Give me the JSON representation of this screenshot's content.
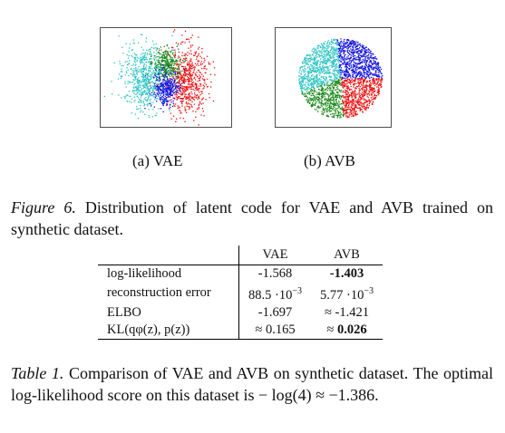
{
  "subfigures": [
    {
      "caption": "(a) VAE"
    },
    {
      "caption": "(b) AVB"
    }
  ],
  "figure_caption": {
    "label": "Figure 6.",
    "text": "Distribution of latent code for VAE and AVB trained on synthetic dataset."
  },
  "table": {
    "headers": [
      "",
      "VAE",
      "AVB"
    ],
    "rows": [
      {
        "metric": "log-likelihood",
        "vae": "-1.568",
        "avb": "-1.403",
        "avb_bold": true
      },
      {
        "metric": "reconstruction error",
        "vae": "88.5 ·10",
        "vae_exp": "−3",
        "avb": "5.77 ·10",
        "avb_exp": "−3"
      },
      {
        "metric": "ELBO",
        "vae": "-1.697",
        "avb": "≈ -1.421"
      },
      {
        "metric": "KL(qφ(z), p(z))",
        "vae": "≈ 0.165",
        "avb_prefix": "≈ ",
        "avb": "0.026",
        "avb_bold": true
      }
    ]
  },
  "table_caption": {
    "label": "Table 1.",
    "text": "Comparison of VAE and AVB on synthetic dataset. The optimal log-likelihood score on this dataset is − log(4) ≈ −1.386."
  },
  "colors": {
    "cyan": "#2ec4c4",
    "green": "#1a8a1a",
    "blue": "#1010e0",
    "red": "#ee1010"
  }
}
